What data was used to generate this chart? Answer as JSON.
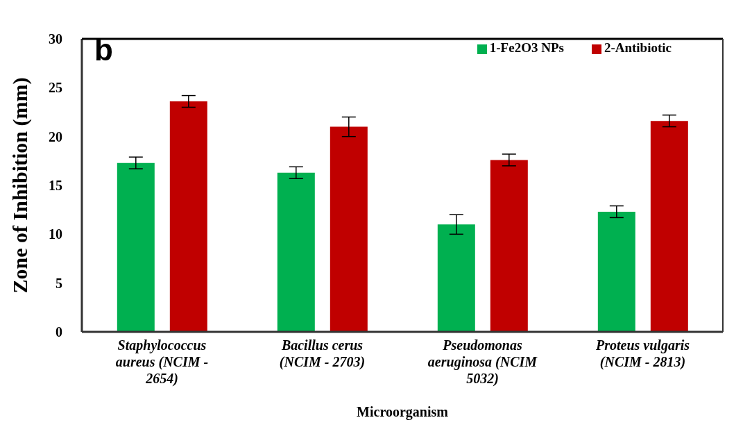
{
  "chart_data": {
    "type": "bar",
    "xlabel": "Microorganism",
    "ylabel": "Zone of Inhibition (mm)",
    "categories": [
      "Staphylococcus aureus (NCIM - 2654)",
      "Bacillus cerus (NCIM - 2703)",
      "Pseudomonas aeruginosa  (NCIM 5032)",
      "Proteus vulgaris (NCIM - 2813)"
    ],
    "series": [
      {
        "name": "1-Fe2O3 NPs",
        "color": "#00b050",
        "values": [
          17.3,
          16.3,
          11.0,
          12.3
        ],
        "errors": [
          0.6,
          0.6,
          1.0,
          0.6
        ]
      },
      {
        "name": "2-Antibiotic",
        "color": "#c00000",
        "values": [
          23.6,
          21.0,
          17.6,
          21.6
        ],
        "errors": [
          0.6,
          1.0,
          0.6,
          0.6
        ]
      }
    ],
    "ylim": [
      0,
      30
    ],
    "yticks": [
      0,
      5,
      10,
      15,
      20,
      25,
      30
    ],
    "legend": "top right",
    "annotations": [
      "b"
    ]
  }
}
